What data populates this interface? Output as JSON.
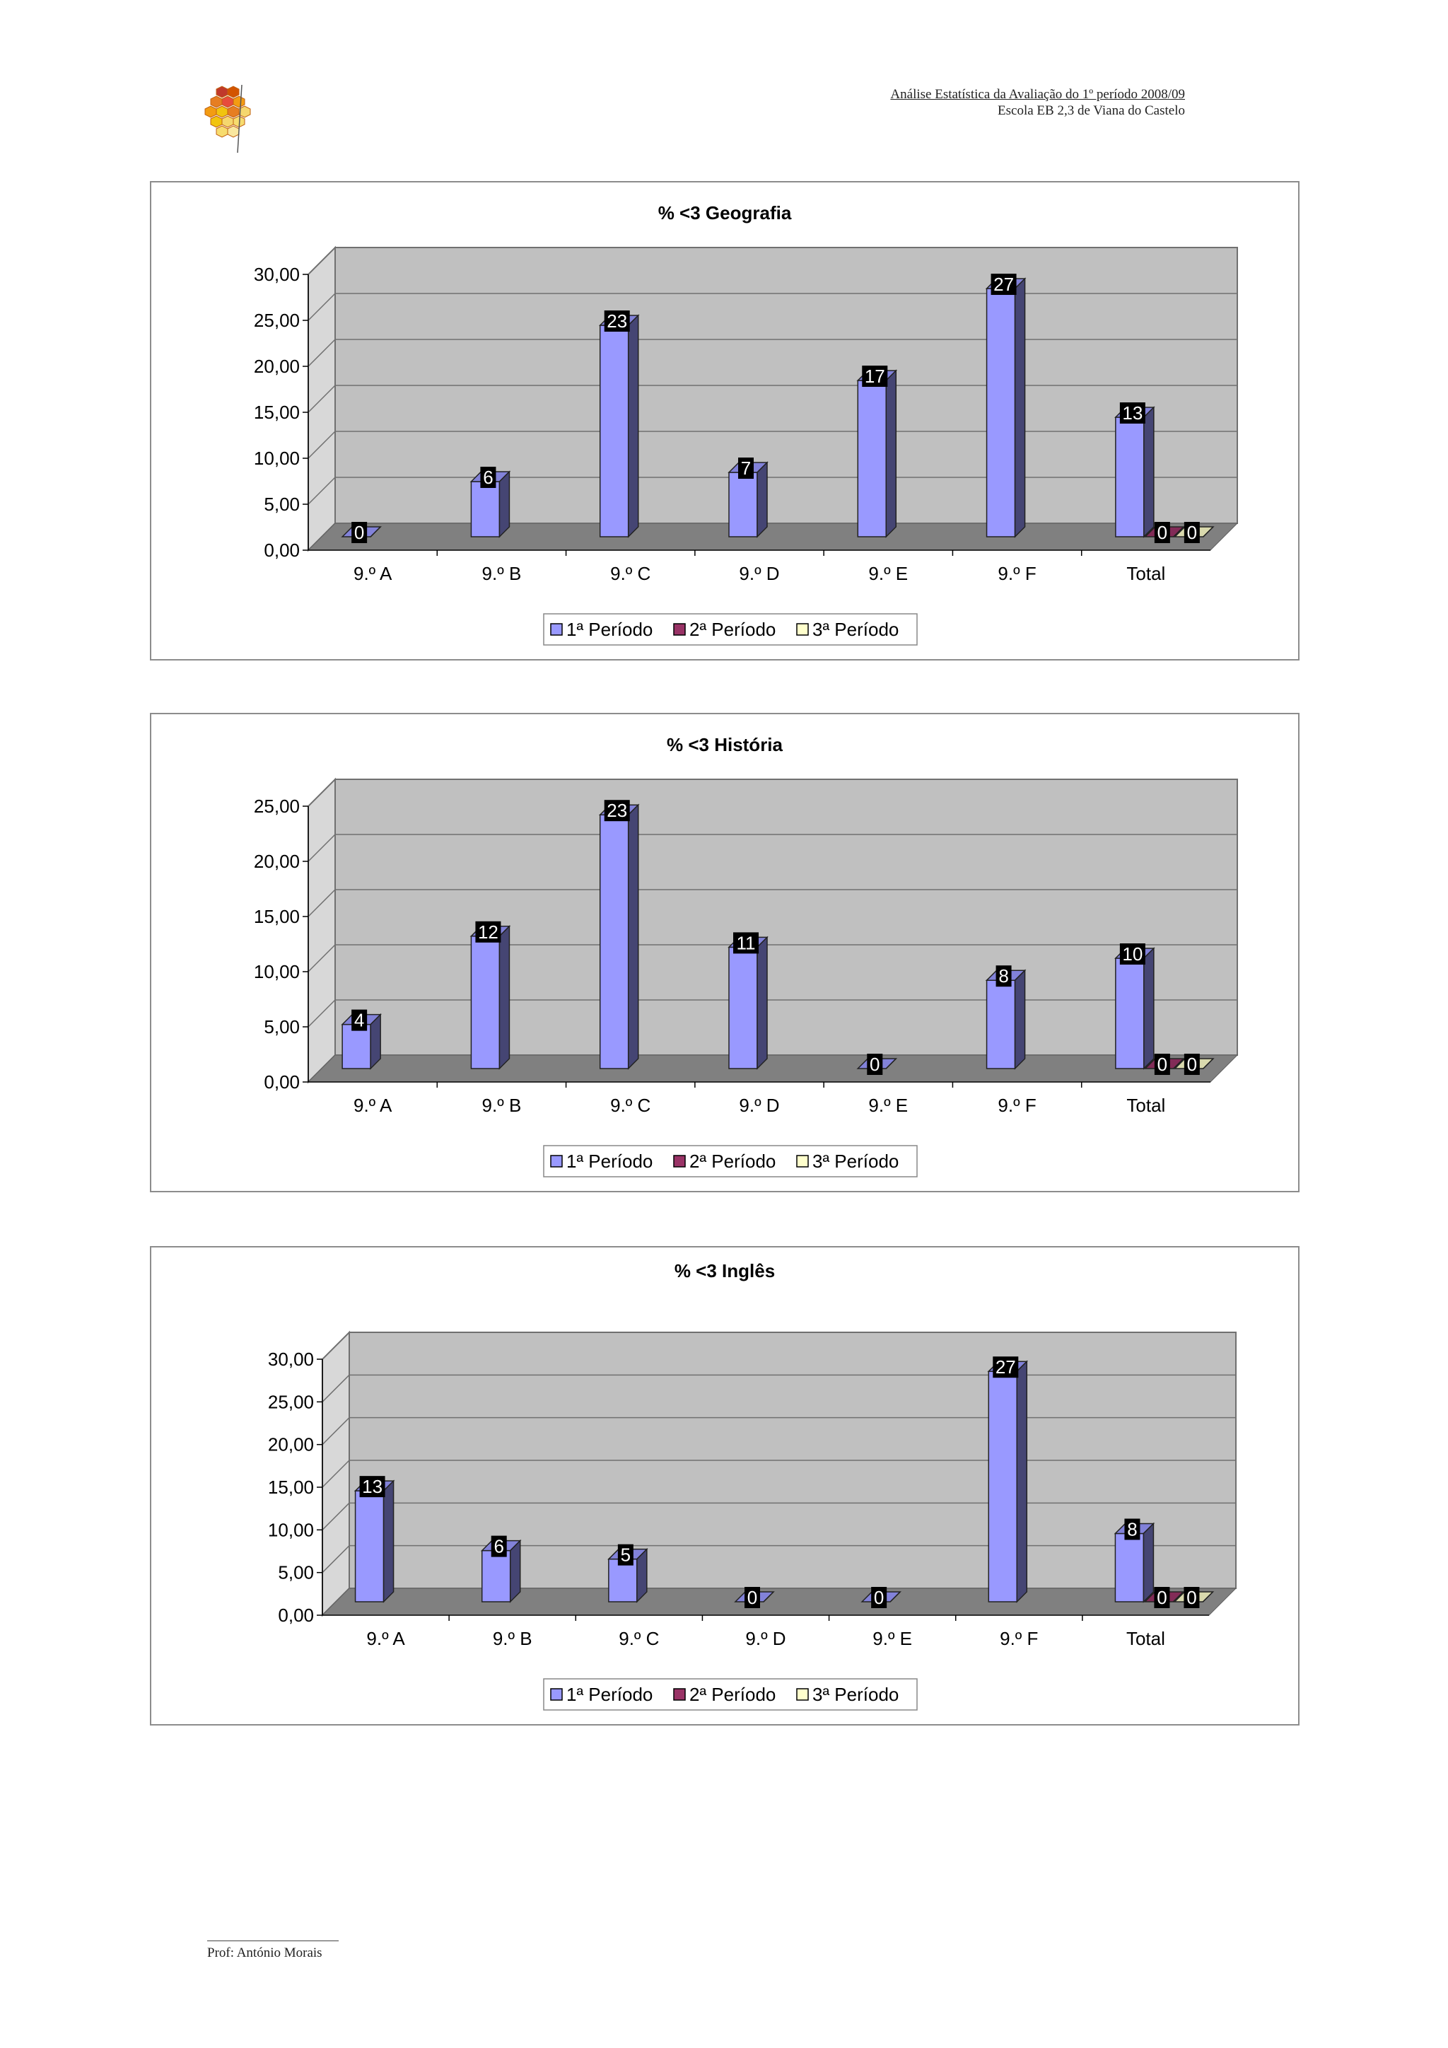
{
  "header": {
    "line1": "Análise Estatística da Avaliação do 1º período 2008/09",
    "line2": "Escola EB 2,3 de Viana do Castelo"
  },
  "footer": {
    "author": "Prof: António Morais"
  },
  "colors": {
    "series1": "#9999ff",
    "series2": "#993366",
    "series3": "#ffffcc",
    "plot_bg": "#c0c0c0",
    "floor": "#808080"
  },
  "chart_data": [
    {
      "type": "bar",
      "title": "%  <3 Geografia",
      "categories": [
        "9.º A",
        "9.º B",
        "9.º C",
        "9.º D",
        "9.º E",
        "9.º F",
        "Total"
      ],
      "series": [
        {
          "name": "1ª Período",
          "values": [
            0,
            6,
            23,
            7,
            17,
            27,
            13
          ]
        },
        {
          "name": "2ª Período",
          "values": [
            null,
            null,
            null,
            null,
            null,
            null,
            0
          ]
        },
        {
          "name": "3ª Período",
          "values": [
            null,
            null,
            null,
            null,
            null,
            null,
            0
          ]
        }
      ],
      "yticks": [
        "0,00",
        "5,00",
        "10,00",
        "15,00",
        "20,00",
        "25,00",
        "30,00"
      ],
      "ylim": [
        0,
        30
      ],
      "legend": "bottom"
    },
    {
      "type": "bar",
      "title": "%  <3 História",
      "categories": [
        "9.º A",
        "9.º B",
        "9.º C",
        "9.º D",
        "9.º E",
        "9.º F",
        "Total"
      ],
      "series": [
        {
          "name": "1ª Período",
          "values": [
            4,
            12,
            23,
            11,
            0,
            8,
            10
          ]
        },
        {
          "name": "2ª Período",
          "values": [
            null,
            null,
            null,
            null,
            null,
            null,
            0
          ]
        },
        {
          "name": "3ª Período",
          "values": [
            null,
            null,
            null,
            null,
            null,
            null,
            0
          ]
        }
      ],
      "yticks": [
        "0,00",
        "5,00",
        "10,00",
        "15,00",
        "20,00",
        "25,00"
      ],
      "ylim": [
        0,
        25
      ],
      "legend": "bottom"
    },
    {
      "type": "bar",
      "title": "%  <3 Inglês",
      "categories": [
        "9.º A",
        "9.º B",
        "9.º C",
        "9.º D",
        "9.º E",
        "9.º F",
        "Total"
      ],
      "series": [
        {
          "name": "1ª Período",
          "values": [
            13,
            6,
            5,
            0,
            0,
            27,
            8
          ]
        },
        {
          "name": "2ª Período",
          "values": [
            null,
            null,
            null,
            null,
            null,
            null,
            0
          ]
        },
        {
          "name": "3ª Período",
          "values": [
            null,
            null,
            null,
            null,
            null,
            null,
            0
          ]
        }
      ],
      "yticks": [
        "0,00",
        "5,00",
        "10,00",
        "15,00",
        "20,00",
        "25,00",
        "30,00"
      ],
      "ylim": [
        0,
        30
      ],
      "legend": "bottom"
    }
  ]
}
